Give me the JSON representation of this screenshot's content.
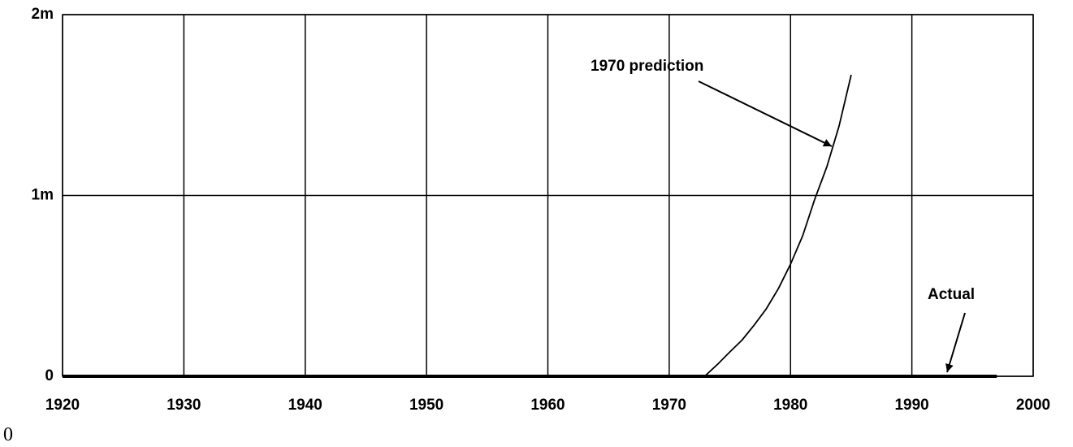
{
  "chart_data": {
    "type": "line",
    "x": [
      1972,
      1973,
      1974,
      1975,
      1976,
      1977,
      1978,
      1979,
      1980,
      1981,
      1982,
      1983,
      1984,
      1985
    ],
    "series": [
      {
        "name": "1970 prediction",
        "color": "#000000",
        "values": [
          0,
          5000,
          67000,
          135000,
          200000,
          283000,
          373000,
          485000,
          620000,
          777000,
          980000,
          1160000,
          1384000,
          1667000
        ]
      },
      {
        "name": "Actual",
        "color": "#000000",
        "x": [
          1920,
          1997
        ],
        "values": [
          0,
          0
        ]
      }
    ],
    "xlim": [
      1920,
      2000
    ],
    "xticks": [
      1920,
      1930,
      1940,
      1950,
      1960,
      1970,
      1980,
      1990,
      2000
    ],
    "ylim": [
      0,
      2000000
    ],
    "yticks": [
      0,
      {
        "value": 1000000,
        "label": "1m"
      },
      {
        "value": 2000000,
        "label": "2m"
      }
    ],
    "grid": true
  },
  "footnote": "0"
}
